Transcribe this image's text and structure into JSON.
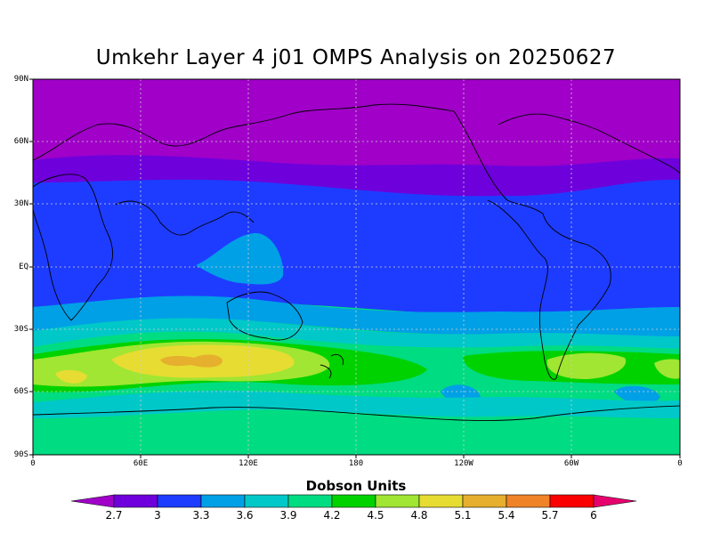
{
  "title": "Umkehr Layer 4 j01 OMPS Analysis on 20250627",
  "lat_labels": [
    "90N",
    "60N",
    "30N",
    "EQ",
    "30S",
    "60S",
    "90S"
  ],
  "lon_labels": [
    "0",
    "60E",
    "120E",
    "180",
    "120W",
    "60W",
    "0"
  ],
  "legend": {
    "title": "Dobson Units",
    "levels": [
      "2.7",
      "3",
      "3.3",
      "3.6",
      "3.9",
      "4.2",
      "4.5",
      "4.8",
      "5.1",
      "5.4",
      "5.7",
      "6"
    ],
    "colors": [
      "#a000c8",
      "#6e00dc",
      "#1e3cff",
      "#00a0e6",
      "#00c8c8",
      "#00dc82",
      "#00d200",
      "#a0e632",
      "#e6dc32",
      "#e6af2d",
      "#f08228",
      "#fa0000",
      "#e6006e"
    ]
  },
  "chart_data": {
    "type": "contour-map",
    "title": "Umkehr Layer 4 j01 OMPS Analysis on 20250627",
    "units": "Dobson Units",
    "contour_levels": [
      2.7,
      3,
      3.3,
      3.6,
      3.9,
      4.2,
      4.5,
      4.8,
      5.1,
      5.4,
      5.7,
      6
    ],
    "lat_range": [
      -90,
      90
    ],
    "lon_range": [
      0,
      360
    ],
    "grid": true,
    "zonal_bands": [
      {
        "lat_from": 90,
        "lat_to": 55,
        "range": "2.7-3"
      },
      {
        "lat_from": 55,
        "lat_to": 38,
        "range": "3-3.3"
      },
      {
        "lat_from": 38,
        "lat_to": -15,
        "range": "3.3-3.6"
      },
      {
        "lat_from": -15,
        "lat_to": -28,
        "range": "3.6-3.9"
      },
      {
        "lat_from": -28,
        "lat_to": -38,
        "range": "3.9-4.2"
      },
      {
        "lat_from": -38,
        "lat_to": -48,
        "range": "4.2-5.1"
      },
      {
        "lat_from": -48,
        "lat_to": -58,
        "range": "3.9-4.5"
      },
      {
        "lat_from": -58,
        "lat_to": -90,
        "range": "3.6-4.2"
      }
    ],
    "maximum": {
      "lon": 100,
      "lat": -42,
      "range": "5.1-5.4"
    }
  }
}
